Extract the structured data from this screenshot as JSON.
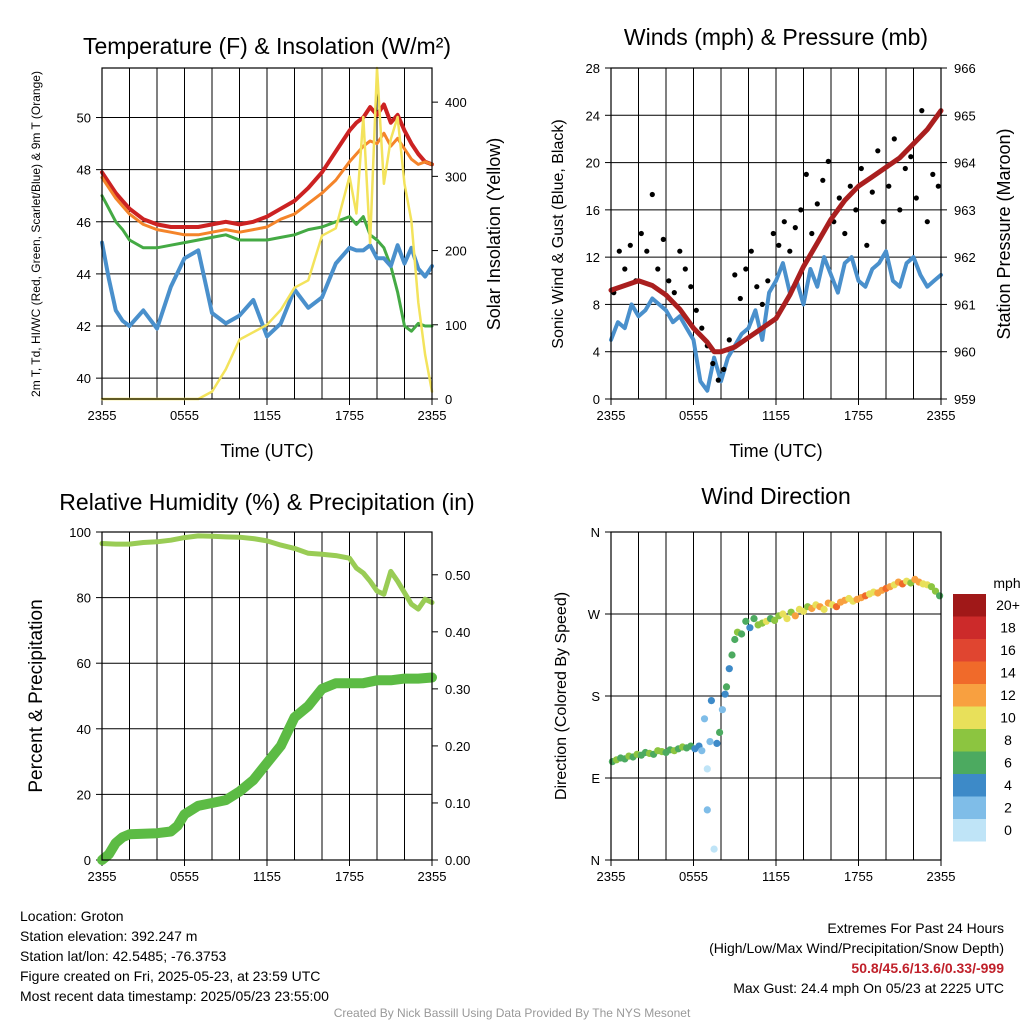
{
  "chart_data": [
    {
      "type": "line",
      "title": "Temperature (F) & Insolation (W/m²)",
      "xlabel": "Time (UTC)",
      "ylabel": "2m T, Td, HI/WC (Red, Green, Scarlet/Blue) & 9m T (Orange)",
      "y2label": "Solar Insolation (Yellow)",
      "x_ticks": [
        "2355",
        "0555",
        "1155",
        "1755",
        "2355"
      ],
      "ylim": [
        39.2,
        51.9
      ],
      "y_ticks": [
        40,
        42,
        44,
        46,
        48,
        50
      ],
      "y2lim": [
        0,
        446
      ],
      "y2_ticks": [
        0,
        100,
        200,
        300,
        400
      ],
      "grid": true,
      "x": [
        0,
        0.5,
        1,
        1.5,
        2,
        3,
        4,
        5,
        6,
        7,
        8,
        9,
        10,
        11,
        12,
        13,
        14,
        15,
        16,
        17,
        18,
        18.5,
        19,
        19.5,
        20,
        20.5,
        21,
        21.5,
        22,
        22.5,
        23,
        23.5,
        24
      ],
      "series": [
        {
          "name": "2m T",
          "axis": "y",
          "color": "#cc2222",
          "width": 4,
          "values": [
            47.9,
            47.5,
            47.1,
            46.8,
            46.5,
            46.1,
            45.9,
            45.8,
            45.8,
            45.8,
            45.9,
            46.0,
            45.9,
            46.0,
            46.2,
            46.5,
            46.8,
            47.3,
            47.9,
            48.7,
            49.5,
            49.8,
            50.0,
            50.4,
            50.1,
            50.5,
            49.8,
            50.1,
            49.5,
            49.0,
            48.6,
            48.3,
            48.2
          ]
        },
        {
          "name": "9m T",
          "axis": "y",
          "color": "#f4842a",
          "width": 3,
          "values": [
            47.7,
            47.3,
            46.9,
            46.6,
            46.3,
            45.9,
            45.7,
            45.6,
            45.5,
            45.5,
            45.6,
            45.7,
            45.6,
            45.7,
            45.8,
            46.1,
            46.3,
            46.7,
            47.1,
            47.6,
            48.3,
            48.6,
            48.9,
            49.1,
            49.0,
            49.4,
            48.9,
            49.2,
            48.8,
            48.4,
            48.2,
            48.3,
            48.2
          ]
        },
        {
          "name": "2m Td",
          "axis": "y",
          "color": "#44aa44",
          "width": 3,
          "values": [
            47.0,
            46.5,
            46.0,
            45.7,
            45.3,
            45.0,
            45.0,
            45.1,
            45.2,
            45.3,
            45.4,
            45.5,
            45.3,
            45.3,
            45.3,
            45.4,
            45.5,
            45.7,
            45.8,
            46.0,
            46.2,
            45.9,
            46.2,
            45.5,
            45.3,
            45.0,
            44.3,
            43.3,
            42.0,
            41.8,
            42.1,
            42.0,
            42.0
          ]
        },
        {
          "name": "HI/WC",
          "axis": "y",
          "color": "#4a90cc",
          "width": 4,
          "values": [
            45.2,
            43.8,
            42.6,
            42.2,
            42.0,
            42.6,
            41.9,
            43.5,
            44.6,
            44.9,
            42.5,
            42.1,
            42.4,
            43.0,
            41.6,
            42.1,
            43.4,
            42.7,
            43.1,
            44.4,
            45.0,
            44.9,
            44.9,
            45.1,
            44.6,
            44.6,
            44.3,
            45.1,
            44.4,
            45.0,
            44.2,
            43.9,
            44.3
          ]
        },
        {
          "name": "Solar Insolation",
          "axis": "y2",
          "color": "#f3e35c",
          "width": 2.5,
          "values": [
            0,
            0,
            0,
            0,
            0,
            0,
            0,
            0,
            0,
            0,
            10,
            40,
            80,
            90,
            100,
            120,
            150,
            160,
            220,
            230,
            300,
            250,
            380,
            210,
            460,
            290,
            350,
            380,
            290,
            240,
            130,
            60,
            10
          ]
        }
      ]
    },
    {
      "type": "line",
      "title": "Winds (mph) & Pressure (mb)",
      "xlabel": "Time (UTC)",
      "ylabel": "Sonic Wind & Gust (Blue, Black)",
      "y2label": "Station Pressure (Maroon)",
      "x_ticks": [
        "2355",
        "0555",
        "1155",
        "1755",
        "2355"
      ],
      "ylim": [
        0,
        28
      ],
      "y_ticks": [
        0,
        4,
        8,
        12,
        16,
        20,
        24,
        28
      ],
      "y2lim": [
        959,
        966
      ],
      "y2_ticks": [
        959,
        960,
        961,
        962,
        963,
        964,
        965,
        966
      ],
      "grid": true,
      "pressure": {
        "name": "Station Pressure",
        "color": "#aa1f1f",
        "x": [
          0,
          1,
          2,
          3,
          4,
          5,
          6,
          7,
          7.5,
          8,
          9,
          10,
          11,
          12,
          13,
          14,
          15,
          16,
          17,
          18,
          19,
          20,
          21,
          22,
          23,
          24
        ],
        "values": [
          961.3,
          961.4,
          961.5,
          961.4,
          961.2,
          960.9,
          960.5,
          960.2,
          960.0,
          960.0,
          960.1,
          960.3,
          960.5,
          960.7,
          961.2,
          961.8,
          962.3,
          962.8,
          963.2,
          963.5,
          963.7,
          963.9,
          964.1,
          964.4,
          964.7,
          965.1
        ]
      },
      "wind": {
        "name": "Sonic Wind",
        "color": "#4a90cc",
        "x": [
          0,
          0.5,
          1,
          1.5,
          2,
          2.5,
          3,
          3.5,
          4,
          4.5,
          5,
          5.5,
          6,
          6.5,
          7,
          7.5,
          8,
          8.5,
          9,
          9.5,
          10,
          10.5,
          11,
          11.5,
          12,
          12.5,
          13,
          13.5,
          14,
          14.5,
          15,
          15.5,
          16,
          16.5,
          17,
          17.5,
          18,
          18.5,
          19,
          19.5,
          20,
          20.5,
          21,
          21.5,
          22,
          22.5,
          23,
          23.5,
          24
        ],
        "values": [
          5,
          6.5,
          6,
          8,
          7,
          7.5,
          8.5,
          8,
          7.5,
          6.5,
          7,
          6,
          5,
          1.5,
          0.7,
          3.5,
          1.5,
          3.5,
          4.5,
          5.5,
          6,
          7.5,
          5,
          9,
          10,
          11.5,
          9,
          10,
          8,
          11,
          9.5,
          12,
          10.5,
          9,
          11.5,
          12,
          10,
          9.5,
          11,
          11.5,
          12.5,
          10,
          9.5,
          11.5,
          12,
          10.5,
          9.5,
          10,
          10.5
        ]
      },
      "gust": {
        "name": "Gust",
        "color": "#000000",
        "x": [
          0.2,
          0.6,
          1.0,
          1.4,
          1.8,
          2.2,
          2.6,
          3.0,
          3.4,
          3.8,
          4.2,
          4.6,
          5.0,
          5.4,
          5.8,
          6.2,
          6.6,
          7.0,
          7.4,
          7.8,
          8.2,
          8.6,
          9.0,
          9.4,
          9.8,
          10.2,
          10.6,
          11.0,
          11.4,
          11.8,
          12.2,
          12.6,
          13.0,
          13.4,
          13.8,
          14.2,
          14.6,
          15.0,
          15.4,
          15.8,
          16.2,
          16.6,
          17.0,
          17.4,
          17.8,
          18.2,
          18.6,
          19.0,
          19.4,
          19.8,
          20.2,
          20.6,
          21.0,
          21.4,
          21.8,
          22.2,
          22.6,
          23.0,
          23.4,
          23.8
        ],
        "values": [
          9,
          12.5,
          11,
          13,
          10,
          14,
          12.5,
          17.3,
          11,
          13.5,
          10,
          9,
          12.5,
          11,
          9.5,
          7.5,
          6,
          4.5,
          3,
          1.6,
          2.5,
          5,
          10.5,
          8.5,
          11,
          12.5,
          9.5,
          8,
          10,
          14,
          13,
          15,
          12.5,
          14.5,
          16,
          19,
          14,
          16.5,
          18.5,
          20.1,
          15,
          17,
          14,
          18,
          16,
          19.5,
          13,
          17.5,
          21,
          15,
          18,
          22,
          16,
          19.5,
          20.5,
          17,
          24.4,
          15,
          19,
          18
        ]
      }
    },
    {
      "type": "line",
      "title": "Relative Humidity (%) & Precipitation (in)",
      "xlabel": "",
      "ylabel": "Percent & Precipitation",
      "x_ticks": [
        "2355",
        "0555",
        "1155",
        "1755",
        "2355"
      ],
      "ylim": [
        0,
        100
      ],
      "y_ticks": [
        0,
        20,
        40,
        60,
        80,
        100
      ],
      "y2lim": [
        0,
        0.575
      ],
      "y2_ticks": [
        "0.00",
        "0.10",
        "0.20",
        "0.30",
        "0.40",
        "0.50"
      ],
      "grid": true,
      "humidity": {
        "name": "Relative Humidity",
        "color": "#99cc55",
        "x": [
          0,
          1,
          2,
          3,
          4,
          5,
          6,
          7,
          8,
          9,
          10,
          11,
          12,
          13,
          14,
          15,
          16,
          17,
          18,
          18.5,
          19,
          19.5,
          20,
          20.5,
          21,
          21.5,
          22,
          22.5,
          23,
          23.5,
          24
        ],
        "values": [
          96.5,
          96.3,
          96.3,
          96.8,
          97.0,
          97.5,
          98.3,
          98.8,
          98.7,
          98.5,
          98.4,
          98.0,
          97.3,
          96.0,
          95.0,
          93.5,
          93.2,
          92.8,
          92.0,
          89.0,
          87.5,
          85.0,
          82.0,
          81.0,
          88.0,
          85.0,
          81.5,
          78.0,
          76.5,
          79.5,
          78.5
        ]
      },
      "precipitation": {
        "name": "Precipitation",
        "color": "#5cbb44",
        "x": [
          0,
          0.5,
          1,
          1.5,
          2,
          3,
          4,
          5,
          5.5,
          6,
          7,
          8,
          9,
          10,
          11,
          12,
          13,
          14,
          15,
          16,
          17,
          18,
          19,
          20,
          21,
          22,
          23,
          24
        ],
        "values": [
          0.0,
          0.01,
          0.03,
          0.04,
          0.045,
          0.046,
          0.047,
          0.05,
          0.06,
          0.08,
          0.095,
          0.1,
          0.105,
          0.12,
          0.14,
          0.17,
          0.2,
          0.25,
          0.27,
          0.3,
          0.31,
          0.31,
          0.31,
          0.315,
          0.315,
          0.318,
          0.318,
          0.32
        ]
      }
    },
    {
      "type": "scatter",
      "title": "Wind Direction",
      "xlabel": "",
      "ylabel": "Direction (Colored By Speed)",
      "x_ticks": [
        "2355",
        "0555",
        "1155",
        "1755",
        "2355"
      ],
      "y_ticks": [
        "N",
        "E",
        "S",
        "W",
        "N"
      ],
      "ylim": [
        0,
        360
      ],
      "grid": true,
      "legend": {
        "title": "mph",
        "levels": [
          "20+",
          "18",
          "16",
          "14",
          "12",
          "10",
          "8",
          "6",
          "4",
          "2",
          "0"
        ],
        "colors": [
          "#a01818",
          "#cc2a2a",
          "#e04530",
          "#f06a2a",
          "#f8a040",
          "#e8e05a",
          "#8cc540",
          "#4caa60",
          "#3d8ac8",
          "#7fbde8",
          "#bfe4f7"
        ]
      },
      "x": [
        0.1,
        0.4,
        0.7,
        1.0,
        1.3,
        1.6,
        1.9,
        2.2,
        2.5,
        2.8,
        3.1,
        3.4,
        3.7,
        4.0,
        4.3,
        4.6,
        4.9,
        5.2,
        5.5,
        5.8,
        6.1,
        6.4,
        6.6,
        6.8,
        7.0,
        7.2,
        7.0,
        7.3,
        7.5,
        7.7,
        7.9,
        8.1,
        8.3,
        8.4,
        8.6,
        8.8,
        9.0,
        9.2,
        9.5,
        9.8,
        10.1,
        10.4,
        10.7,
        11.0,
        11.3,
        11.6,
        11.9,
        12.2,
        12.5,
        12.8,
        13.1,
        13.4,
        13.7,
        14.0,
        14.3,
        14.6,
        14.9,
        15.2,
        15.5,
        15.8,
        16.1,
        16.4,
        16.7,
        17.0,
        17.3,
        17.6,
        17.9,
        18.2,
        18.5,
        18.8,
        19.1,
        19.4,
        19.7,
        20.0,
        20.3,
        20.6,
        20.9,
        21.2,
        21.5,
        21.8,
        22.1,
        22.4,
        22.7,
        23.0,
        23.3,
        23.6,
        23.9
      ],
      "values": [
        108,
        110,
        112,
        111,
        114,
        113,
        116,
        115,
        118,
        117,
        116,
        120,
        119,
        118,
        121,
        120,
        122,
        124,
        123,
        125,
        122,
        125,
        120,
        155,
        100,
        130,
        55,
        175,
        12,
        128,
        140,
        165,
        182,
        190,
        210,
        225,
        242,
        250,
        248,
        262,
        255,
        265,
        258,
        260,
        262,
        265,
        263,
        268,
        270,
        265,
        272,
        268,
        275,
        273,
        278,
        276,
        280,
        278,
        275,
        282,
        280,
        278,
        283,
        285,
        287,
        284,
        286,
        288,
        290,
        292,
        294,
        293,
        296,
        298,
        300,
        302,
        305,
        303,
        306,
        304,
        308,
        305,
        303,
        302,
        300,
        295,
        290
      ],
      "speed": [
        6,
        7,
        5,
        6,
        7,
        6,
        8,
        5,
        6,
        7,
        6,
        8,
        7,
        5,
        6,
        7,
        6,
        8,
        6,
        5,
        4,
        3,
        2,
        1,
        0,
        2,
        1,
        3,
        0,
        4,
        5,
        2,
        3,
        5,
        4,
        6,
        5,
        7,
        6,
        5,
        4,
        6,
        7,
        8,
        9,
        6,
        7,
        8,
        10,
        9,
        8,
        11,
        10,
        9,
        8,
        12,
        10,
        11,
        9,
        12,
        10,
        13,
        11,
        12,
        9,
        10,
        12,
        11,
        13,
        10,
        9,
        11,
        12,
        14,
        11,
        10,
        12,
        13,
        9,
        8,
        12,
        11,
        10,
        9,
        8,
        7,
        6
      ]
    }
  ],
  "station": {
    "location": "Location: Groton",
    "elevation": "Station elevation: 392.247 m",
    "latlon": "Station lat/lon: 42.5485; -76.3753",
    "created": "Figure created on Fri, 2025-05-23, at 23:59 UTC",
    "recent": "Most recent data timestamp: 2025/05/23 23:55:00"
  },
  "extremes": {
    "title": "Extremes For Past 24 Hours",
    "subtitle": "(High/Low/Max Wind/Precipitation/Snow Depth)",
    "values": "50.8/45.6/13.6/0.33/-999",
    "max_gust": "Max Gust: 24.4 mph On 05/23 at 2225 UTC"
  },
  "credit": "Created By Nick Bassill Using Data Provided By The NYS Mesonet"
}
